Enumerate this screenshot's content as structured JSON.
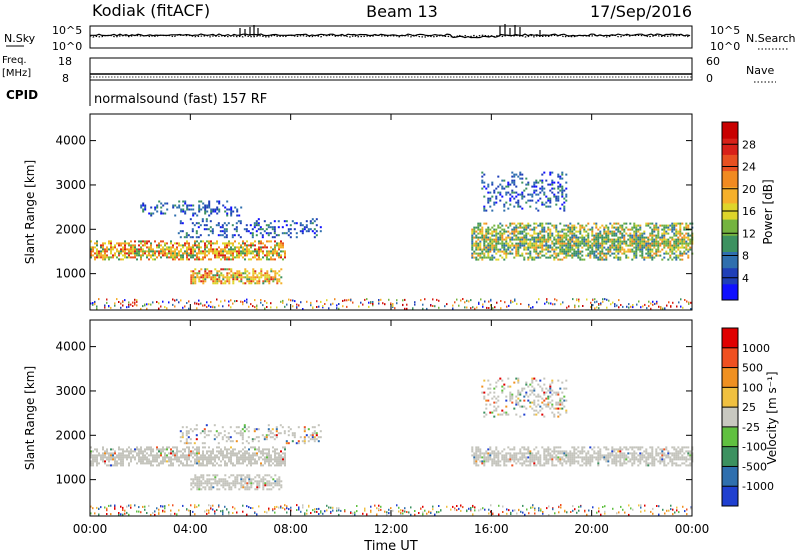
{
  "header": {
    "station": "Kodiak (fitACF)",
    "beam": "Beam 13",
    "date": "17/Sep/2016"
  },
  "top_panels": {
    "nsky_label": "N.Sky",
    "nsearch_label": "N.Search",
    "nsky_ticks": [
      "10^5",
      "10^0"
    ],
    "nsearch_ticks": [
      "10^5",
      "10^0"
    ],
    "freq_label_1": "Freq.",
    "freq_label_2": "[MHz]",
    "freq_ticks": [
      "18",
      "8"
    ],
    "nave_label": "Nave",
    "nave_ticks": [
      "60",
      "0"
    ],
    "cpid_label": "CPID",
    "cpid_text": "normalsound (fast) 157 RF"
  },
  "chart_data": [
    {
      "type": "heatmap",
      "title": "",
      "xlabel": "Time UT",
      "ylabel": "Slant Range [km]",
      "x_ticks": [
        "00:00",
        "04:00",
        "08:00",
        "12:00",
        "16:00",
        "20:00",
        "00:00"
      ],
      "y_ticks": [
        "1000",
        "2000",
        "3000",
        "4000"
      ],
      "xlim": [
        0,
        24
      ],
      "ylim": [
        180,
        4600
      ],
      "colorbar": {
        "label": "Power [dB]",
        "ticks": [
          "4",
          "8",
          "12",
          "16",
          "20",
          "24",
          "28"
        ],
        "colors": [
          "#1010ff",
          "#1f3fb8",
          "#2f6fae",
          "#3c9160",
          "#74b340",
          "#dfd52a",
          "#f6b02a",
          "#f08a20",
          "#e85020",
          "#d82018",
          "#c80000"
        ]
      },
      "echo_regions": [
        {
          "t0": 0.0,
          "t1": 7.8,
          "r0": 1300,
          "r1": 1750,
          "level": "high"
        },
        {
          "t0": 4.0,
          "t1": 7.6,
          "r0": 760,
          "r1": 1120,
          "level": "high"
        },
        {
          "t0": 3.5,
          "t1": 9.2,
          "r0": 1800,
          "r1": 2250,
          "level": "low"
        },
        {
          "t0": 2.0,
          "t1": 6.0,
          "r0": 2300,
          "r1": 2650,
          "level": "low"
        },
        {
          "t0": 15.2,
          "t1": 24.0,
          "r0": 1300,
          "r1": 2150,
          "level": "medium"
        },
        {
          "t0": 15.6,
          "t1": 19.0,
          "r0": 2400,
          "r1": 3300,
          "level": "low"
        }
      ]
    },
    {
      "type": "heatmap",
      "title": "",
      "xlabel": "Time UT",
      "ylabel": "Slant Range [km]",
      "x_ticks": [
        "00:00",
        "04:00",
        "08:00",
        "12:00",
        "16:00",
        "20:00",
        "00:00"
      ],
      "y_ticks": [
        "1000",
        "2000",
        "3000",
        "4000"
      ],
      "xlim": [
        0,
        24
      ],
      "ylim": [
        180,
        4600
      ],
      "colorbar": {
        "label": "Velocity [m s⁻¹]",
        "ticks": [
          "1000",
          "500",
          "100",
          "25",
          "-25",
          "-100",
          "-500",
          "-1000"
        ],
        "colors": [
          "#2040d0",
          "#2f6fae",
          "#3c9160",
          "#60c040",
          "#c8c8c0",
          "#f0c040",
          "#f09020",
          "#f05020",
          "#e00000"
        ]
      },
      "echo_regions": [
        {
          "t0": 0.0,
          "t1": 7.8,
          "r0": 1300,
          "r1": 1750,
          "level": "ground"
        },
        {
          "t0": 4.0,
          "t1": 7.6,
          "r0": 760,
          "r1": 1120,
          "level": "ground"
        },
        {
          "t0": 15.2,
          "t1": 24.0,
          "r0": 1300,
          "r1": 1750,
          "level": "ground"
        },
        {
          "t0": 3.5,
          "t1": 9.2,
          "r0": 1800,
          "r1": 2250,
          "level": "mixed"
        },
        {
          "t0": 15.6,
          "t1": 19.0,
          "r0": 2400,
          "r1": 3300,
          "level": "mixed"
        }
      ]
    }
  ]
}
